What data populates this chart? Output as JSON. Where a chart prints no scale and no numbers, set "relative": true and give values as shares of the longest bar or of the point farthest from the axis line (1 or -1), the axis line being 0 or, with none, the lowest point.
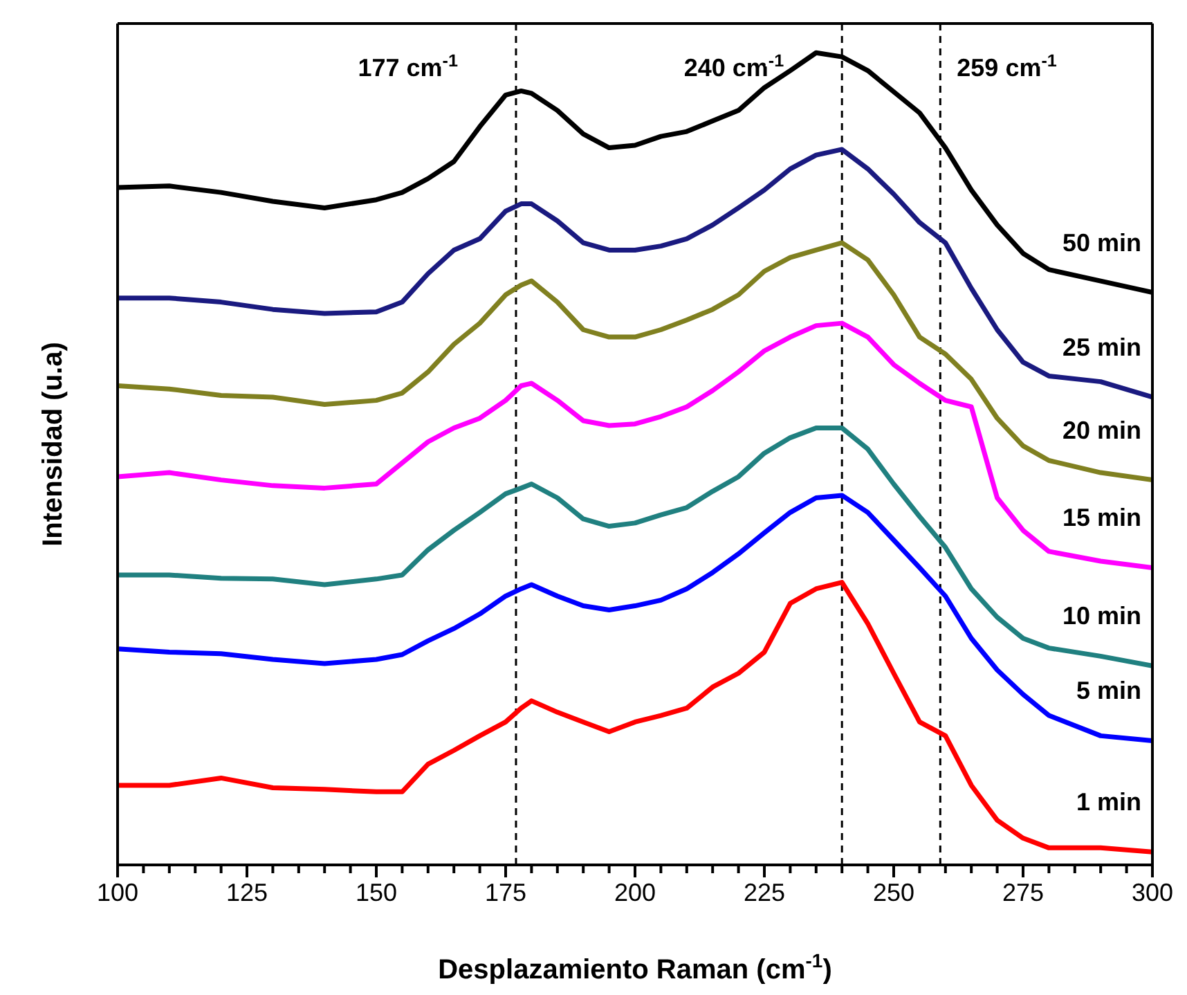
{
  "chart_data": {
    "type": "line",
    "relative": true,
    "xlabel": "Desplazamiento Raman (cm$^{-1}$)",
    "ylabel": "Intensidad (u.a)",
    "x": [
      100,
      110,
      120,
      130,
      140,
      150,
      155,
      160,
      165,
      170,
      175,
      178,
      180,
      185,
      190,
      195,
      200,
      205,
      210,
      215,
      220,
      225,
      230,
      235,
      240,
      245,
      250,
      255,
      260,
      265,
      270,
      275,
      280,
      290,
      300
    ],
    "xlim": [
      100,
      300
    ],
    "xticks": [
      100,
      {
        "value": 105,
        "label": null
      },
      {
        "value": 110,
        "label": null
      },
      {
        "value": 115,
        "label": null
      },
      {
        "value": 120,
        "label": null
      },
      125,
      {
        "value": 130,
        "label": null
      },
      {
        "value": 135,
        "label": null
      },
      {
        "value": 140,
        "label": null
      },
      {
        "value": 145,
        "label": null
      },
      150,
      {
        "value": 155,
        "label": null
      },
      {
        "value": 160,
        "label": null
      },
      {
        "value": 165,
        "label": null
      },
      {
        "value": 170,
        "label": null
      },
      175,
      {
        "value": 180,
        "label": null
      },
      {
        "value": 185,
        "label": null
      },
      {
        "value": 190,
        "label": null
      },
      {
        "value": 195,
        "label": null
      },
      200,
      {
        "value": 205,
        "label": null
      },
      {
        "value": 210,
        "label": null
      },
      {
        "value": 215,
        "label": null
      },
      {
        "value": 220,
        "label": null
      },
      225,
      {
        "value": 230,
        "label": null
      },
      {
        "value": 235,
        "label": null
      },
      {
        "value": 240,
        "label": null
      },
      {
        "value": 245,
        "label": null
      },
      250,
      {
        "value": 255,
        "label": null
      },
      {
        "value": 260,
        "label": null
      },
      {
        "value": 265,
        "label": null
      },
      {
        "value": 270,
        "label": null
      },
      275,
      {
        "value": 280,
        "label": null
      },
      {
        "value": 285,
        "label": null
      },
      {
        "value": 290,
        "label": null
      },
      {
        "value": 295,
        "label": null
      },
      300
    ],
    "marker": "none",
    "line_style": "solid",
    "series": [
      {
        "name": "50 min",
        "color": "#000000",
        "values": [
          0.834,
          0.836,
          0.828,
          0.817,
          0.809,
          0.819,
          0.828,
          0.845,
          0.866,
          0.909,
          0.948,
          0.953,
          0.95,
          0.929,
          0.9,
          0.883,
          0.886,
          0.897,
          0.903,
          0.916,
          0.929,
          0.957,
          0.978,
          1.0,
          0.995,
          0.978,
          0.952,
          0.926,
          0.883,
          0.831,
          0.788,
          0.753,
          0.733,
          0.719,
          0.705
        ]
      },
      {
        "name": "25 min",
        "color": "#1a1a80",
        "values": [
          0.698,
          0.698,
          0.693,
          0.684,
          0.679,
          0.681,
          0.693,
          0.728,
          0.757,
          0.771,
          0.805,
          0.814,
          0.814,
          0.793,
          0.766,
          0.757,
          0.757,
          0.762,
          0.771,
          0.788,
          0.809,
          0.831,
          0.857,
          0.874,
          0.881,
          0.857,
          0.826,
          0.791,
          0.766,
          0.71,
          0.659,
          0.619,
          0.602,
          0.595,
          0.576
        ]
      },
      {
        "name": "20 min",
        "color": "#808020",
        "values": [
          0.59,
          0.586,
          0.578,
          0.576,
          0.567,
          0.572,
          0.581,
          0.607,
          0.641,
          0.667,
          0.702,
          0.714,
          0.719,
          0.693,
          0.659,
          0.65,
          0.65,
          0.659,
          0.671,
          0.684,
          0.702,
          0.731,
          0.748,
          0.757,
          0.766,
          0.745,
          0.702,
          0.65,
          0.629,
          0.598,
          0.55,
          0.516,
          0.498,
          0.483,
          0.474
        ]
      },
      {
        "name": "15 min",
        "color": "#ff00ff",
        "values": [
          0.478,
          0.483,
          0.474,
          0.467,
          0.464,
          0.469,
          0.495,
          0.521,
          0.538,
          0.55,
          0.572,
          0.59,
          0.593,
          0.572,
          0.547,
          0.541,
          0.543,
          0.552,
          0.564,
          0.584,
          0.607,
          0.633,
          0.65,
          0.664,
          0.667,
          0.65,
          0.616,
          0.593,
          0.572,
          0.564,
          0.452,
          0.412,
          0.386,
          0.374,
          0.366
        ]
      },
      {
        "name": "10 min",
        "color": "#208080",
        "values": [
          0.357,
          0.357,
          0.353,
          0.352,
          0.345,
          0.352,
          0.357,
          0.388,
          0.412,
          0.434,
          0.457,
          0.464,
          0.469,
          0.452,
          0.426,
          0.417,
          0.421,
          0.431,
          0.44,
          0.46,
          0.478,
          0.507,
          0.526,
          0.538,
          0.538,
          0.512,
          0.469,
          0.429,
          0.391,
          0.34,
          0.305,
          0.279,
          0.267,
          0.257,
          0.245
        ]
      },
      {
        "name": "5 min",
        "color": "#0000ff",
        "values": [
          0.266,
          0.262,
          0.26,
          0.253,
          0.248,
          0.253,
          0.259,
          0.276,
          0.291,
          0.309,
          0.331,
          0.34,
          0.345,
          0.331,
          0.319,
          0.314,
          0.319,
          0.326,
          0.34,
          0.36,
          0.383,
          0.409,
          0.434,
          0.452,
          0.455,
          0.434,
          0.4,
          0.366,
          0.331,
          0.279,
          0.24,
          0.21,
          0.184,
          0.159,
          0.153
        ]
      },
      {
        "name": "1 min",
        "color": "#ff0000",
        "values": [
          0.098,
          0.098,
          0.107,
          0.095,
          0.093,
          0.09,
          0.09,
          0.124,
          0.141,
          0.159,
          0.176,
          0.193,
          0.202,
          0.188,
          0.176,
          0.164,
          0.176,
          0.184,
          0.193,
          0.219,
          0.236,
          0.262,
          0.322,
          0.34,
          0.348,
          0.297,
          0.236,
          0.176,
          0.159,
          0.098,
          0.055,
          0.033,
          0.021,
          0.021,
          0.016
        ]
      }
    ],
    "ref_lines": [
      {
        "axis": "x",
        "value": 177,
        "label": "177 cm$^{-1}$",
        "color": "#000000",
        "line_style": "dashed"
      },
      {
        "axis": "x",
        "value": 240,
        "label": "240 cm$^{-1}$",
        "color": "#000000",
        "line_style": "dashed"
      },
      {
        "axis": "x",
        "value": 259,
        "label": "259 cm$^{-1}$",
        "color": "#000000",
        "line_style": "dashed"
      }
    ]
  }
}
